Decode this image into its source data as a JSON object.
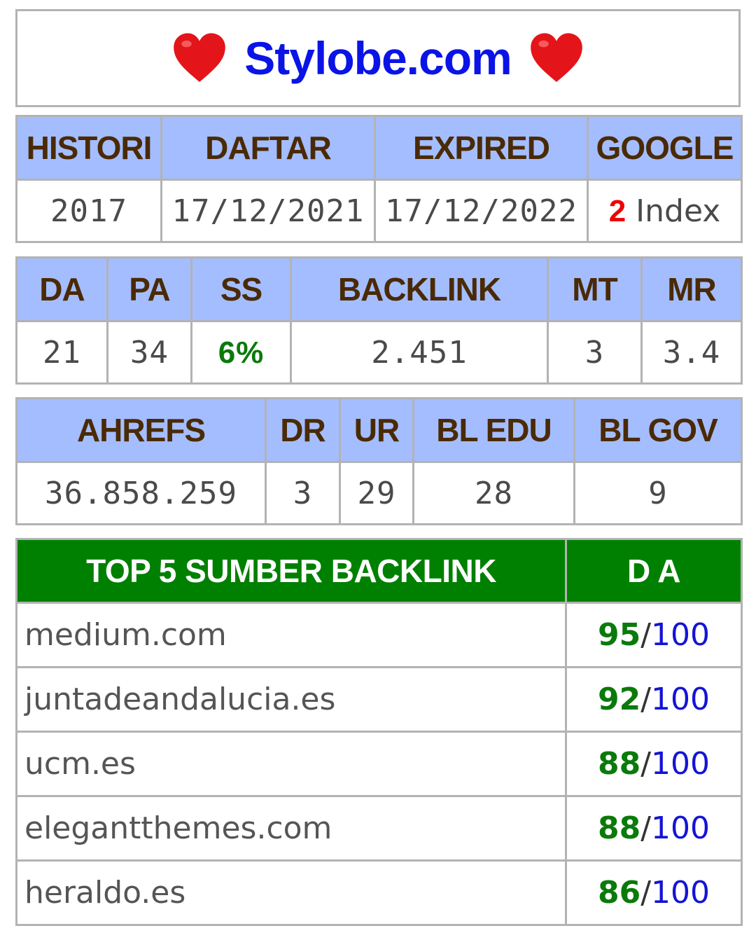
{
  "title": {
    "site": "Stylobe.com",
    "left_icon": "heart-icon",
    "right_icon": "heart-icon",
    "heart_color": "#e3151a"
  },
  "table1": {
    "headers": [
      "HISTORI",
      "DAFTAR",
      "EXPIRED",
      "GOOGLE"
    ],
    "values": {
      "histori": "2017",
      "daftar": "17/12/2021",
      "expired": "17/12/2022",
      "google_count": "2",
      "google_label": "Index"
    }
  },
  "table2": {
    "headers": [
      "DA",
      "PA",
      "SS",
      "BACKLINK",
      "MT",
      "MR"
    ],
    "values": [
      "21",
      "34",
      "6%",
      "2.451",
      "3",
      "3.4"
    ]
  },
  "table3": {
    "headers": [
      "AHREFS",
      "DR",
      "UR",
      "BL EDU",
      "BL GOV"
    ],
    "values": [
      "36.858.259",
      "3",
      "29",
      "28",
      "9"
    ]
  },
  "top5": {
    "header_source": "TOP 5 SUMBER BACKLINK",
    "header_da": "D A",
    "rows": [
      {
        "source": "medium.com",
        "da": "95",
        "sep": "/",
        "max": "100"
      },
      {
        "source": "juntadeandalucia.es",
        "da": "92",
        "sep": "/",
        "max": "100"
      },
      {
        "source": "ucm.es",
        "da": "88",
        "sep": "/",
        "max": "100"
      },
      {
        "source": "elegantthemes.com",
        "da": "88",
        "sep": "/",
        "max": "100"
      },
      {
        "source": "heraldo.es",
        "da": "86",
        "sep": "/",
        "max": "100"
      }
    ]
  },
  "colors": {
    "header_bg": "#a4bdff",
    "header_text": "#4a2a06",
    "top5_header_bg": "#008000",
    "title_text": "#0a14e6"
  }
}
